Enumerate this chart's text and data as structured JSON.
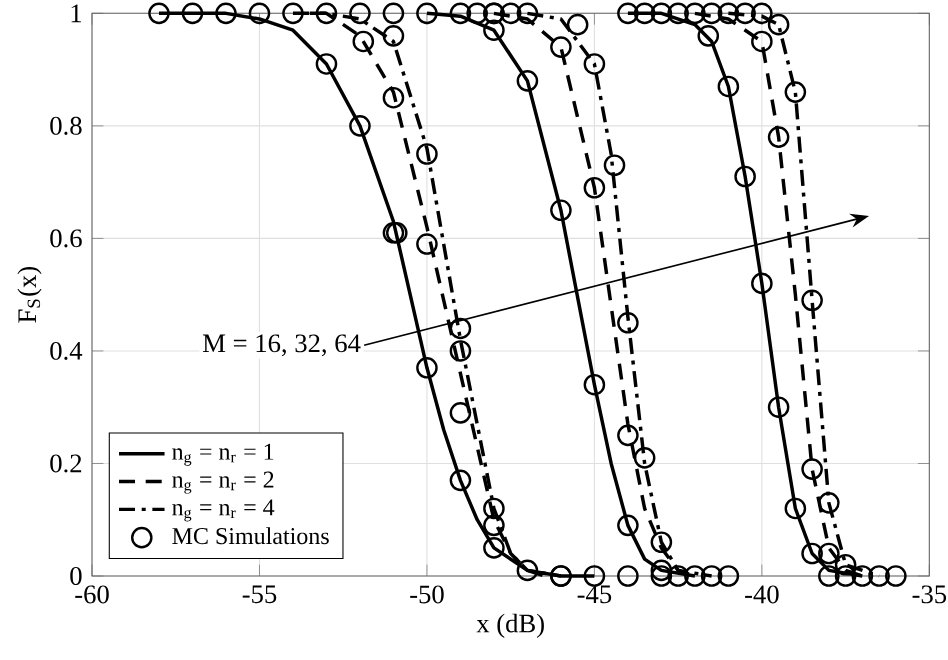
{
  "chart_data": {
    "type": "line",
    "xlabel": "x (dB)",
    "ylabel": "F$_{S}$(x)",
    "xlim": [
      -60,
      -35
    ],
    "ylim": [
      0,
      1
    ],
    "xticks": [
      -60,
      -55,
      -50,
      -45,
      -40,
      -35
    ],
    "yticks": [
      0,
      0.2,
      0.4,
      0.6,
      0.8,
      1
    ],
    "grid": true,
    "legend": "bottom left",
    "marker": "none",
    "annotations": [
      "M = 16, 32, 64"
    ],
    "series": [
      {
        "name": "n$_{g}$ = n$_{r}$ = 1",
        "color": "#000000",
        "line_style": "solid",
        "x": [
          -58,
          -56,
          -55,
          -54,
          -53,
          -52,
          -51,
          -50,
          -49.5,
          -49,
          -48.5,
          -48,
          -47,
          -46,
          -45
        ],
        "values": [
          1,
          1,
          0.99,
          0.97,
          0.91,
          0.8,
          0.63,
          0.37,
          0.26,
          0.17,
          0.1,
          0.05,
          0.01,
          0,
          0
        ]
      },
      {
        "name": "n$_{g}$ = n$_{r}$ = 2",
        "color": "#000000",
        "line_style": "dashed",
        "x": [
          -54,
          -53,
          -52,
          -51,
          -50,
          -49,
          -48,
          -47.5,
          -47,
          -46.5
        ],
        "values": [
          1,
          1,
          0.96,
          0.86,
          0.62,
          0.36,
          0.1,
          0.04,
          0.01,
          0
        ]
      },
      {
        "name": "n$_{g}$ = n$_{r}$ = 4",
        "color": "#000000",
        "line_style": "dashdot",
        "x": [
          -53.5,
          -53,
          -52,
          -51,
          -50,
          -49,
          -48,
          -47.5,
          -47,
          -46
        ],
        "values": [
          1,
          1,
          0.99,
          0.95,
          0.76,
          0.42,
          0.12,
          0.04,
          0.01,
          0
        ]
      },
      {
        "name": "MC Simulations",
        "type": "scatter",
        "color": "#000000",
        "marker": "circle",
        "x": [
          -58,
          -57,
          -56,
          -55,
          -54,
          -53,
          -52,
          -51,
          -50,
          -49,
          -53,
          -52,
          -51,
          -50.9,
          -50,
          -49,
          -48,
          -47,
          -51.9,
          -51,
          -50,
          -49,
          -48,
          -51,
          -50,
          -49,
          -49,
          -48,
          -48,
          -46,
          -48.5,
          -48,
          -47.5,
          -47,
          -48,
          -47,
          -46,
          -45,
          -44,
          -43,
          -46,
          -45,
          -44,
          -43,
          -45.5,
          -45,
          -44.4,
          -44,
          -43.5,
          -46,
          -45,
          -44,
          -43,
          -42.5,
          -42,
          -41.5,
          -41,
          -44,
          -43.5,
          -43,
          -42.5,
          -42,
          -41.5,
          -41,
          -40.5,
          -40,
          -41.6,
          -41,
          -40.5,
          -40,
          -39.5,
          -39,
          -38.5,
          -40,
          -39.5,
          -38.5,
          -38,
          -39.5,
          -39,
          -38.5,
          -38,
          -37.5,
          -38,
          -37.5,
          -37,
          -36.5,
          -36
        ],
        "values": [
          1,
          1,
          1,
          1,
          1,
          1,
          1,
          1,
          1,
          1,
          0.91,
          0.8,
          0.61,
          0.61,
          0.37,
          0.17,
          0.05,
          0.01,
          0.95,
          0.85,
          0.59,
          0.4,
          0.12,
          0.96,
          0.75,
          0.44,
          0.29,
          0.09,
          1,
          0,
          1,
          1,
          1,
          1,
          0.97,
          0.88,
          0.65,
          0.34,
          0.09,
          0.01,
          0.94,
          0.69,
          0.25,
          0.06,
          0.98,
          0.91,
          0.73,
          0.45,
          0.21,
          0,
          0,
          0,
          0,
          0,
          0,
          0,
          0,
          1,
          1,
          1,
          1,
          1,
          1,
          1,
          1,
          1,
          0.96,
          0.87,
          0.71,
          0.52,
          0.3,
          0.12,
          0.04,
          0.95,
          0.78,
          0.19,
          0.04,
          0.98,
          0.86,
          0.49,
          0.13,
          0.02,
          0,
          0,
          0,
          0,
          0
        ]
      },
      {
        "color": "#000000",
        "line_style": "solid",
        "x": [
          -50,
          -49,
          -48,
          -47,
          -46,
          -45,
          -44.5,
          -44,
          -43.5,
          -43,
          -42
        ],
        "values": [
          1,
          0.995,
          0.97,
          0.88,
          0.65,
          0.34,
          0.2,
          0.09,
          0.03,
          0.01,
          0
        ]
      },
      {
        "color": "#000000",
        "line_style": "dashed",
        "x": [
          -48,
          -47,
          -46,
          -45,
          -44,
          -43.5,
          -43,
          -42.5,
          -42
        ],
        "values": [
          1,
          0.99,
          0.94,
          0.69,
          0.27,
          0.12,
          0.05,
          0.01,
          0
        ]
      },
      {
        "color": "#000000",
        "line_style": "dashdot",
        "x": [
          -47,
          -46,
          -45,
          -44.5,
          -44,
          -43.5,
          -43,
          -42.5,
          -41.5
        ],
        "values": [
          1,
          0.99,
          0.91,
          0.75,
          0.46,
          0.2,
          0.06,
          0.01,
          0
        ]
      },
      {
        "color": "#000000",
        "line_style": "solid",
        "x": [
          -44,
          -43,
          -42,
          -41.5,
          -41,
          -40.5,
          -40,
          -39.5,
          -39,
          -38.5,
          -38,
          -37
        ],
        "values": [
          1,
          1,
          0.98,
          0.95,
          0.87,
          0.71,
          0.52,
          0.3,
          0.12,
          0.04,
          0.01,
          0
        ]
      },
      {
        "color": "#000000",
        "line_style": "dashed",
        "x": [
          -42,
          -41,
          -40,
          -39.5,
          -39,
          -38.5,
          -38,
          -37.5,
          -37
        ],
        "values": [
          1,
          0.99,
          0.95,
          0.78,
          0.5,
          0.19,
          0.05,
          0.01,
          0
        ]
      },
      {
        "color": "#000000",
        "line_style": "dashdot",
        "x": [
          -41,
          -40,
          -39.5,
          -39,
          -38.5,
          -38,
          -37.5,
          -36.5
        ],
        "values": [
          1,
          0.995,
          0.98,
          0.86,
          0.49,
          0.13,
          0.02,
          0
        ]
      }
    ]
  }
}
